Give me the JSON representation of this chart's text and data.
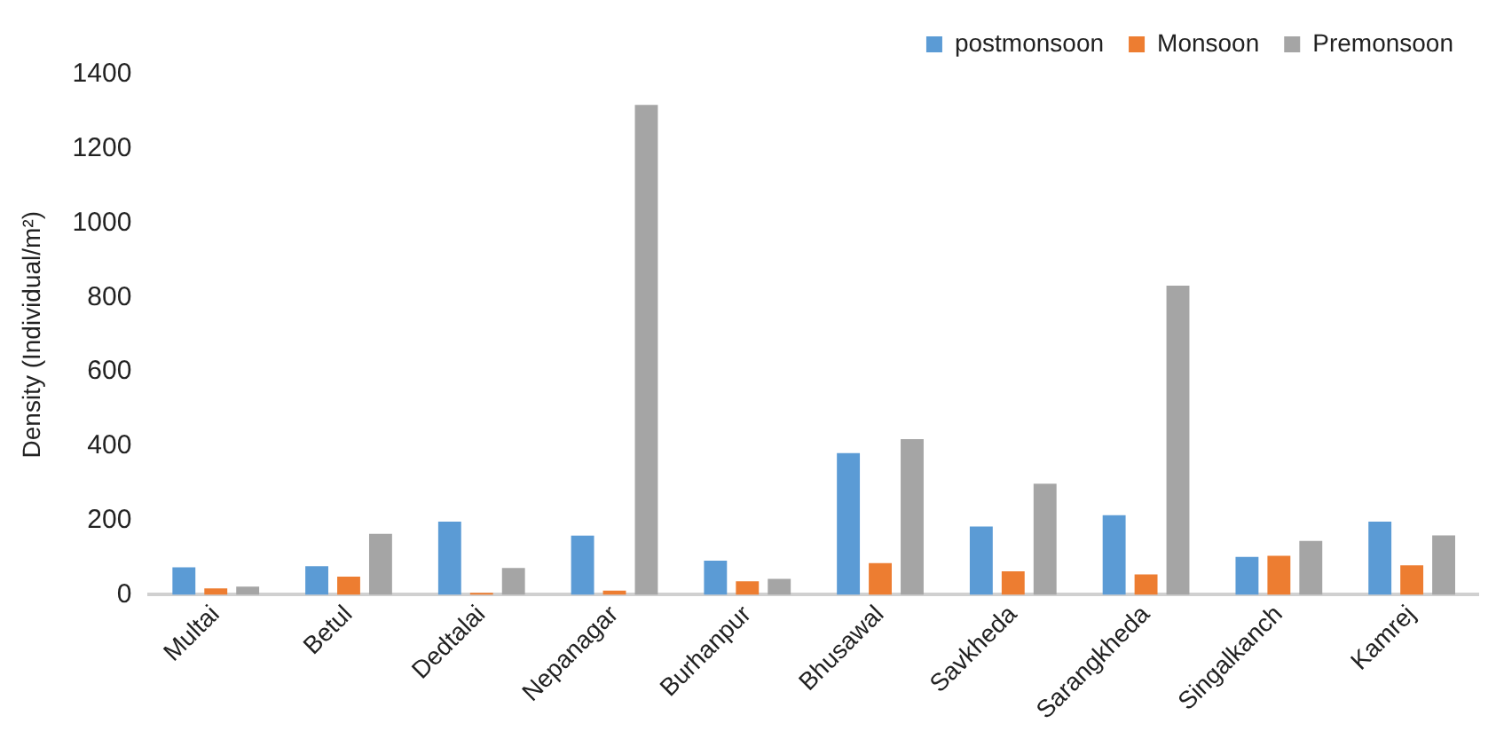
{
  "chart_data": {
    "type": "bar",
    "ylabel": "Density (Individual/m²)",
    "categories": [
      "Multai",
      "Betul",
      "Dedtalai",
      "Nepanagar",
      "Burhanpur",
      "Bhusawal",
      "Savkheda",
      "Sarangkheda",
      "Singalkanch",
      "Kamrej"
    ],
    "series": [
      {
        "name": "postmonsoon",
        "color": "#5b9bd5",
        "values": [
          74,
          77,
          197,
          159,
          92,
          381,
          184,
          214,
          102,
          197
        ]
      },
      {
        "name": "Monsoon",
        "color": "#ed7d31",
        "values": [
          17,
          49,
          5,
          11,
          36,
          85,
          63,
          55,
          105,
          79
        ]
      },
      {
        "name": "Premonsoon",
        "color": "#a5a5a5",
        "values": [
          22,
          164,
          72,
          1318,
          43,
          419,
          299,
          832,
          145,
          160
        ]
      }
    ],
    "ylim": [
      0,
      1400
    ],
    "yticks": [
      0,
      200,
      400,
      600,
      800,
      1000,
      1200,
      1400
    ],
    "grid": false,
    "legend": "top right"
  }
}
